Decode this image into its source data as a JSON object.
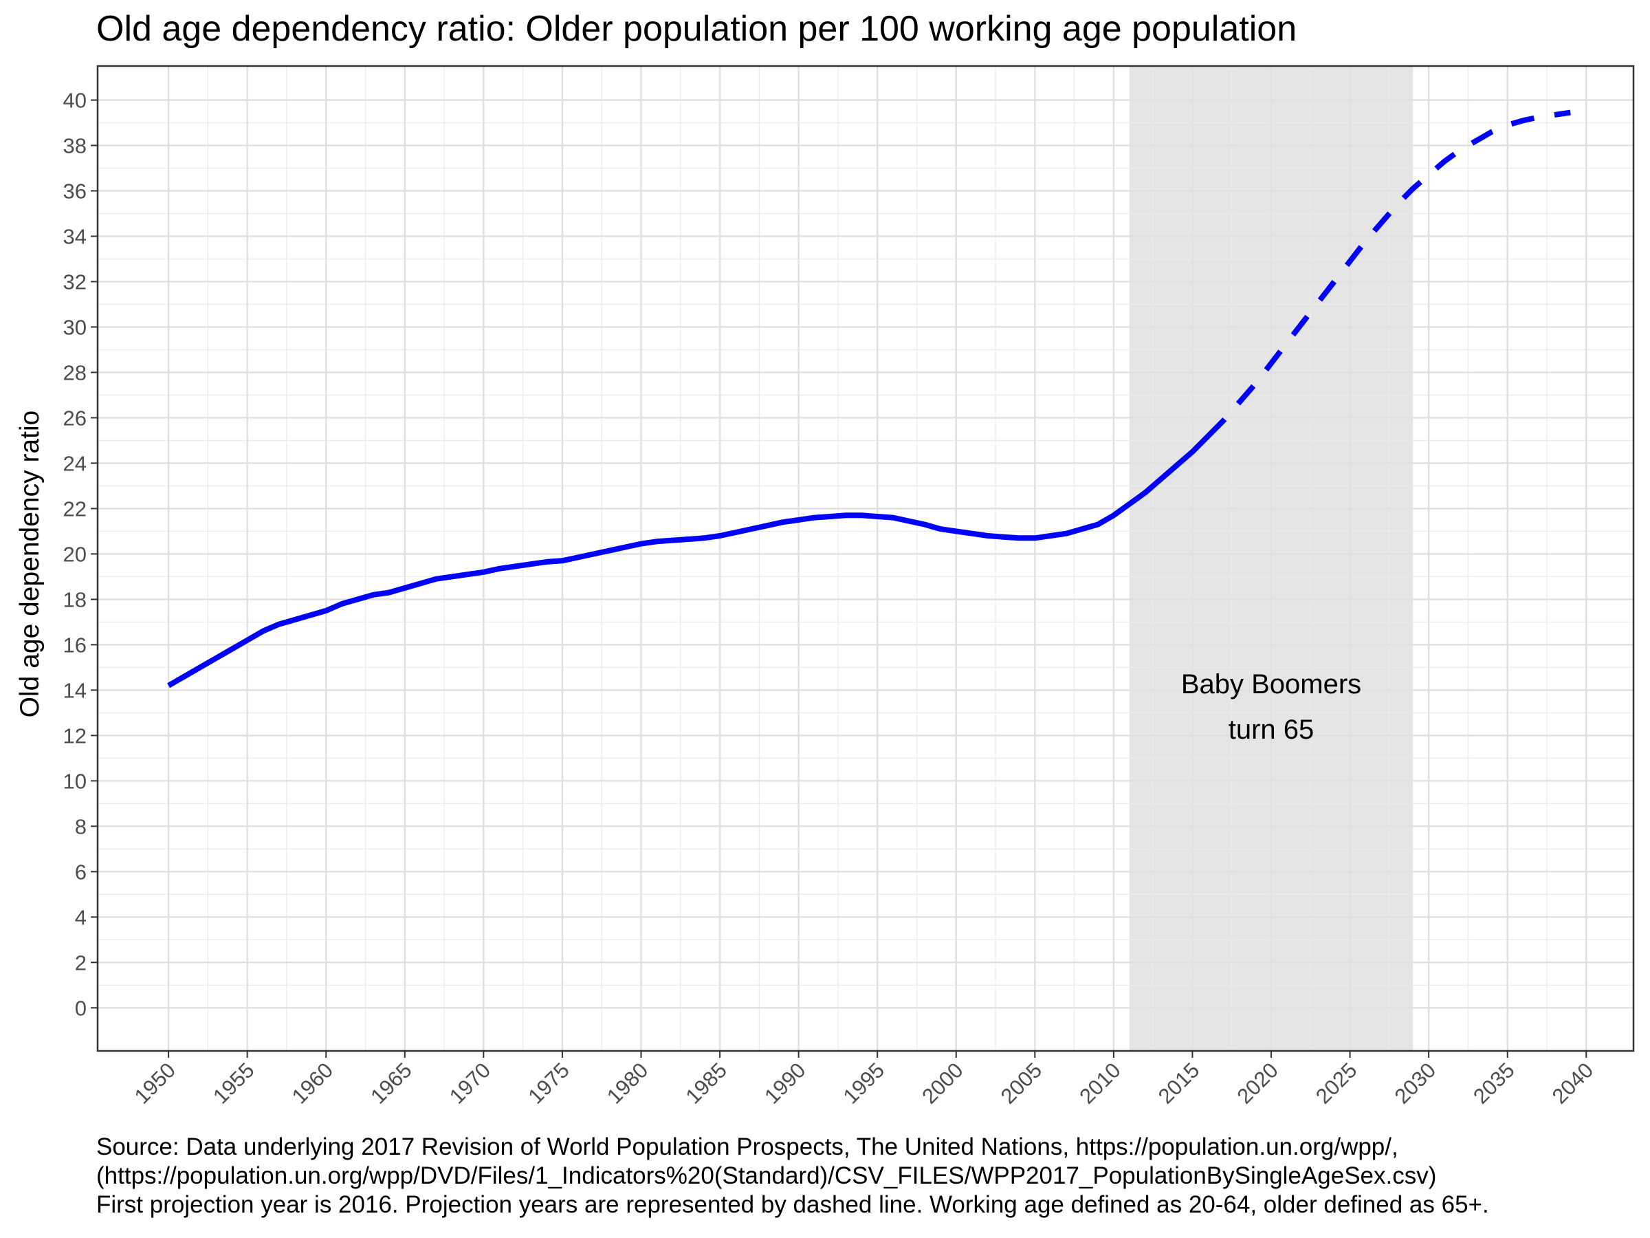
{
  "chart_data": {
    "type": "line",
    "title": "Old age dependency ratio: Older population per 100 working age population",
    "xlabel": "",
    "ylabel": "Old age dependency ratio",
    "xlim": [
      1945.5,
      2043
    ],
    "ylim": [
      -1.9,
      41.5
    ],
    "x_ticks": [
      1950,
      1955,
      1960,
      1965,
      1970,
      1975,
      1980,
      1985,
      1990,
      1995,
      2000,
      2005,
      2010,
      2015,
      2020,
      2025,
      2030,
      2035,
      2040
    ],
    "y_ticks": [
      0,
      2,
      4,
      6,
      8,
      10,
      12,
      14,
      16,
      18,
      20,
      22,
      24,
      26,
      28,
      30,
      32,
      34,
      36,
      38,
      40
    ],
    "grid": true,
    "shaded_region": {
      "x_start": 2011,
      "x_end": 2029,
      "color": "#e5e5e5"
    },
    "annotation": {
      "x": 2020,
      "y": 13.2,
      "lines": [
        "Baby Boomers",
        "turn 65"
      ]
    },
    "series": [
      {
        "line_color": "#0000ff",
        "style": "solid",
        "x": [
          1950,
          1951,
          1952,
          1953,
          1954,
          1955,
          1956,
          1957,
          1958,
          1959,
          1960,
          1961,
          1962,
          1963,
          1964,
          1965,
          1966,
          1967,
          1968,
          1969,
          1970,
          1971,
          1972,
          1973,
          1974,
          1975,
          1976,
          1977,
          1978,
          1979,
          1980,
          1981,
          1982,
          1983,
          1984,
          1985,
          1986,
          1987,
          1988,
          1989,
          1990,
          1991,
          1992,
          1993,
          1994,
          1995,
          1996,
          1997,
          1998,
          1999,
          2000,
          2001,
          2002,
          2003,
          2004,
          2005,
          2006,
          2007,
          2008,
          2009,
          2010,
          2011,
          2012,
          2013,
          2014,
          2015,
          2016
        ],
        "y": [
          14.2,
          14.6,
          15.0,
          15.4,
          15.8,
          16.2,
          16.6,
          16.9,
          17.1,
          17.3,
          17.5,
          17.8,
          18.0,
          18.2,
          18.3,
          18.5,
          18.7,
          18.9,
          19.0,
          19.1,
          19.2,
          19.35,
          19.45,
          19.55,
          19.65,
          19.7,
          19.85,
          20.0,
          20.15,
          20.3,
          20.45,
          20.55,
          20.6,
          20.65,
          20.7,
          20.8,
          20.95,
          21.1,
          21.25,
          21.4,
          21.5,
          21.6,
          21.65,
          21.7,
          21.7,
          21.65,
          21.6,
          21.45,
          21.3,
          21.1,
          21.0,
          20.9,
          20.8,
          20.75,
          20.7,
          20.7,
          20.8,
          20.9,
          21.1,
          21.3,
          21.7,
          22.2,
          22.7,
          23.3,
          23.9,
          24.5,
          25.2
        ]
      },
      {
        "line_color": "#0000ff",
        "style": "dashed",
        "x": [
          2016,
          2017,
          2018,
          2019,
          2020,
          2021,
          2022,
          2023,
          2024,
          2025,
          2026,
          2027,
          2028,
          2029,
          2030,
          2031,
          2032,
          2033,
          2034,
          2035,
          2036,
          2037,
          2038,
          2039
        ],
        "y": [
          25.2,
          25.9,
          26.7,
          27.5,
          28.4,
          29.3,
          30.2,
          31.1,
          32.0,
          32.9,
          33.8,
          34.6,
          35.4,
          36.1,
          36.7,
          37.3,
          37.8,
          38.2,
          38.6,
          38.9,
          39.1,
          39.25,
          39.35,
          39.45
        ]
      }
    ]
  },
  "caption": {
    "lines": [
      "Source: Data underlying 2017 Revision of World Population Prospects, The United Nations, https://population.un.org/wpp/,",
      "(https://population.un.org/wpp/DVD/Files/1_Indicators%20(Standard)/CSV_FILES/WPP2017_PopulationBySingleAgeSex.csv)",
      "First projection year is 2016. Projection years are represented by dashed line. Working age defined as 20-64, older defined as 65+."
    ]
  }
}
